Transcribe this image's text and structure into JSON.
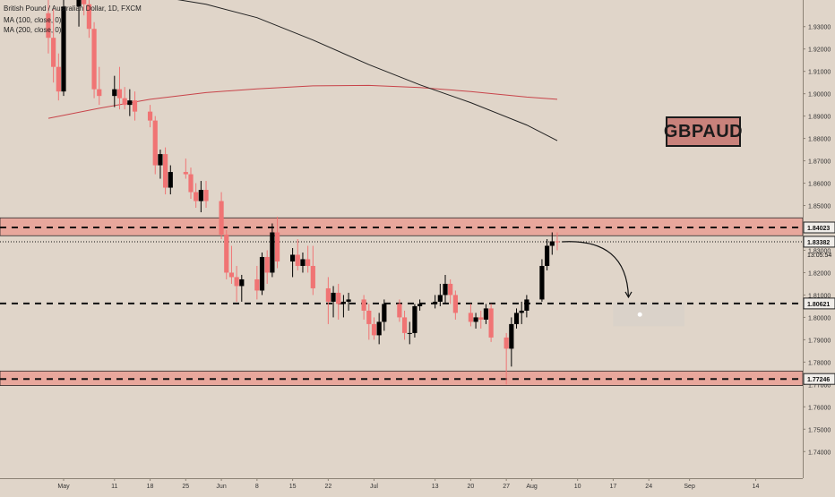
{
  "legend": {
    "title": "British Pound / Australian Dollar, 1D, FXCM",
    "ma100": "MA (100, close, 0)",
    "ma200": "MA (200, close, 0)"
  },
  "symbol_label": "GBPAUD",
  "colors": {
    "background": "#e0d5c9",
    "up_candle": "#000000",
    "down_candle": "#f07474",
    "zone_fill": "#e8a79c",
    "ma100": "#c8444a",
    "ma200": "#222222"
  },
  "chart_data": {
    "type": "candlestick",
    "ylim": [
      1.7345,
      1.9395
    ],
    "y_ticks": [
      "1.93000",
      "1.92000",
      "1.91000",
      "1.90000",
      "1.89000",
      "1.88000",
      "1.87000",
      "1.86000",
      "1.85000",
      "1.84000",
      "1.83000",
      "1.82000",
      "1.81000",
      "1.80000",
      "1.79000",
      "1.78000",
      "1.77000",
      "1.76000",
      "1.75000",
      "1.74000"
    ],
    "x_ticks": [
      "May",
      "11",
      "18",
      "25",
      "Jun",
      "8",
      "15",
      "22",
      "Jul",
      "13",
      "20",
      "27",
      "Aug",
      "10",
      "17",
      "24",
      "Sep",
      "14"
    ],
    "x_tick_dates": [
      "2020-05-01",
      "2020-05-11",
      "2020-05-18",
      "2020-05-25",
      "2020-06-01",
      "2020-06-08",
      "2020-06-15",
      "2020-06-22",
      "2020-07-01",
      "2020-07-13",
      "2020-07-20",
      "2020-07-27",
      "2020-08-01",
      "2020-08-10",
      "2020-08-17",
      "2020-08-24",
      "2020-09-01",
      "2020-09-14"
    ],
    "candles": [
      {
        "date": "2020-04-28",
        "o": 1.936,
        "h": 1.95,
        "l": 1.918,
        "c": 1.925
      },
      {
        "date": "2020-04-29",
        "o": 1.925,
        "h": 1.938,
        "l": 1.905,
        "c": 1.912
      },
      {
        "date": "2020-04-30",
        "o": 1.912,
        "h": 1.918,
        "l": 1.897,
        "c": 1.901
      },
      {
        "date": "2020-05-01",
        "o": 1.901,
        "h": 1.945,
        "l": 1.899,
        "c": 1.939
      },
      {
        "date": "2020-05-04",
        "o": 1.939,
        "h": 1.95,
        "l": 1.93,
        "c": 1.944
      },
      {
        "date": "2020-05-05",
        "o": 1.944,
        "h": 1.955,
        "l": 1.935,
        "c": 1.94
      },
      {
        "date": "2020-05-06",
        "o": 1.94,
        "h": 1.945,
        "l": 1.925,
        "c": 1.929
      },
      {
        "date": "2020-05-07",
        "o": 1.929,
        "h": 1.932,
        "l": 1.898,
        "c": 1.902
      },
      {
        "date": "2020-05-08",
        "o": 1.902,
        "h": 1.912,
        "l": 1.895,
        "c": 1.899
      },
      {
        "date": "2020-05-11",
        "o": 1.899,
        "h": 1.908,
        "l": 1.894,
        "c": 1.902
      },
      {
        "date": "2020-05-12",
        "o": 1.902,
        "h": 1.912,
        "l": 1.893,
        "c": 1.898
      },
      {
        "date": "2020-05-13",
        "o": 1.898,
        "h": 1.903,
        "l": 1.893,
        "c": 1.895
      },
      {
        "date": "2020-05-14",
        "o": 1.895,
        "h": 1.902,
        "l": 1.89,
        "c": 1.897
      },
      {
        "date": "2020-05-15",
        "o": 1.897,
        "h": 1.901,
        "l": 1.888,
        "c": 1.892
      },
      {
        "date": "2020-05-18",
        "o": 1.892,
        "h": 1.895,
        "l": 1.885,
        "c": 1.888
      },
      {
        "date": "2020-05-19",
        "o": 1.888,
        "h": 1.89,
        "l": 1.864,
        "c": 1.868
      },
      {
        "date": "2020-05-20",
        "o": 1.868,
        "h": 1.875,
        "l": 1.862,
        "c": 1.873
      },
      {
        "date": "2020-05-21",
        "o": 1.873,
        "h": 1.876,
        "l": 1.855,
        "c": 1.858
      },
      {
        "date": "2020-05-22",
        "o": 1.858,
        "h": 1.868,
        "l": 1.855,
        "c": 1.865
      },
      {
        "date": "2020-05-25",
        "o": 1.865,
        "h": 1.871,
        "l": 1.862,
        "c": 1.864
      },
      {
        "date": "2020-05-26",
        "o": 1.864,
        "h": 1.867,
        "l": 1.853,
        "c": 1.856
      },
      {
        "date": "2020-05-27",
        "o": 1.856,
        "h": 1.86,
        "l": 1.849,
        "c": 1.852
      },
      {
        "date": "2020-05-28",
        "o": 1.852,
        "h": 1.861,
        "l": 1.847,
        "c": 1.857
      },
      {
        "date": "2020-05-29",
        "o": 1.857,
        "h": 1.861,
        "l": 1.849,
        "c": 1.852
      },
      {
        "date": "2020-06-01",
        "o": 1.852,
        "h": 1.856,
        "l": 1.835,
        "c": 1.837
      },
      {
        "date": "2020-06-02",
        "o": 1.837,
        "h": 1.839,
        "l": 1.817,
        "c": 1.82
      },
      {
        "date": "2020-06-03",
        "o": 1.82,
        "h": 1.832,
        "l": 1.815,
        "c": 1.818
      },
      {
        "date": "2020-06-04",
        "o": 1.818,
        "h": 1.823,
        "l": 1.807,
        "c": 1.814
      },
      {
        "date": "2020-06-05",
        "o": 1.814,
        "h": 1.819,
        "l": 1.807,
        "c": 1.817
      },
      {
        "date": "2020-06-08",
        "o": 1.817,
        "h": 1.823,
        "l": 1.808,
        "c": 1.812
      },
      {
        "date": "2020-06-09",
        "o": 1.812,
        "h": 1.829,
        "l": 1.81,
        "c": 1.827
      },
      {
        "date": "2020-06-10",
        "o": 1.827,
        "h": 1.83,
        "l": 1.815,
        "c": 1.82
      },
      {
        "date": "2020-06-11",
        "o": 1.82,
        "h": 1.842,
        "l": 1.818,
        "c": 1.838
      },
      {
        "date": "2020-06-12",
        "o": 1.838,
        "h": 1.845,
        "l": 1.822,
        "c": 1.825
      },
      {
        "date": "2020-06-15",
        "o": 1.825,
        "h": 1.831,
        "l": 1.818,
        "c": 1.828
      },
      {
        "date": "2020-06-16",
        "o": 1.828,
        "h": 1.835,
        "l": 1.821,
        "c": 1.823
      },
      {
        "date": "2020-06-17",
        "o": 1.823,
        "h": 1.829,
        "l": 1.82,
        "c": 1.826
      },
      {
        "date": "2020-06-18",
        "o": 1.826,
        "h": 1.832,
        "l": 1.82,
        "c": 1.823
      },
      {
        "date": "2020-06-19",
        "o": 1.823,
        "h": 1.832,
        "l": 1.81,
        "c": 1.813
      },
      {
        "date": "2020-06-22",
        "o": 1.813,
        "h": 1.818,
        "l": 1.797,
        "c": 1.807
      },
      {
        "date": "2020-06-23",
        "o": 1.807,
        "h": 1.814,
        "l": 1.8,
        "c": 1.811
      },
      {
        "date": "2020-06-24",
        "o": 1.811,
        "h": 1.815,
        "l": 1.799,
        "c": 1.806
      },
      {
        "date": "2020-06-25",
        "o": 1.806,
        "h": 1.81,
        "l": 1.8,
        "c": 1.807
      },
      {
        "date": "2020-06-26",
        "o": 1.807,
        "h": 1.811,
        "l": 1.803,
        "c": 1.808
      },
      {
        "date": "2020-06-29",
        "o": 1.808,
        "h": 1.81,
        "l": 1.799,
        "c": 1.803
      },
      {
        "date": "2020-06-30",
        "o": 1.803,
        "h": 1.806,
        "l": 1.79,
        "c": 1.797
      },
      {
        "date": "2020-07-01",
        "o": 1.797,
        "h": 1.8,
        "l": 1.79,
        "c": 1.792
      },
      {
        "date": "2020-07-02",
        "o": 1.792,
        "h": 1.802,
        "l": 1.788,
        "c": 1.798
      },
      {
        "date": "2020-07-03",
        "o": 1.798,
        "h": 1.808,
        "l": 1.794,
        "c": 1.806
      },
      {
        "date": "2020-07-06",
        "o": 1.806,
        "h": 1.808,
        "l": 1.798,
        "c": 1.8
      },
      {
        "date": "2020-07-07",
        "o": 1.8,
        "h": 1.803,
        "l": 1.79,
        "c": 1.793
      },
      {
        "date": "2020-07-08",
        "o": 1.793,
        "h": 1.798,
        "l": 1.788,
        "c": 1.793
      },
      {
        "date": "2020-07-09",
        "o": 1.793,
        "h": 1.806,
        "l": 1.791,
        "c": 1.805
      },
      {
        "date": "2020-07-10",
        "o": 1.805,
        "h": 1.808,
        "l": 1.803,
        "c": 1.806
      },
      {
        "date": "2020-07-13",
        "o": 1.806,
        "h": 1.81,
        "l": 1.804,
        "c": 1.807
      },
      {
        "date": "2020-07-14",
        "o": 1.807,
        "h": 1.815,
        "l": 1.805,
        "c": 1.81
      },
      {
        "date": "2020-07-15",
        "o": 1.81,
        "h": 1.819,
        "l": 1.806,
        "c": 1.815
      },
      {
        "date": "2020-07-16",
        "o": 1.815,
        "h": 1.817,
        "l": 1.806,
        "c": 1.81
      },
      {
        "date": "2020-07-17",
        "o": 1.81,
        "h": 1.812,
        "l": 1.799,
        "c": 1.802
      },
      {
        "date": "2020-07-20",
        "o": 1.802,
        "h": 1.806,
        "l": 1.796,
        "c": 1.798
      },
      {
        "date": "2020-07-21",
        "o": 1.798,
        "h": 1.802,
        "l": 1.795,
        "c": 1.8
      },
      {
        "date": "2020-07-22",
        "o": 1.8,
        "h": 1.803,
        "l": 1.795,
        "c": 1.799
      },
      {
        "date": "2020-07-23",
        "o": 1.799,
        "h": 1.806,
        "l": 1.797,
        "c": 1.804
      },
      {
        "date": "2020-07-24",
        "o": 1.804,
        "h": 1.806,
        "l": 1.789,
        "c": 1.791
      },
      {
        "date": "2020-07-27",
        "o": 1.791,
        "h": 1.793,
        "l": 1.77,
        "c": 1.786
      },
      {
        "date": "2020-07-28",
        "o": 1.786,
        "h": 1.8,
        "l": 1.778,
        "c": 1.797
      },
      {
        "date": "2020-07-29",
        "o": 1.797,
        "h": 1.804,
        "l": 1.795,
        "c": 1.802
      },
      {
        "date": "2020-07-30",
        "o": 1.802,
        "h": 1.807,
        "l": 1.797,
        "c": 1.803
      },
      {
        "date": "2020-07-31",
        "o": 1.803,
        "h": 1.81,
        "l": 1.8,
        "c": 1.808
      },
      {
        "date": "2020-08-03",
        "o": 1.808,
        "h": 1.826,
        "l": 1.807,
        "c": 1.823
      },
      {
        "date": "2020-08-04",
        "o": 1.823,
        "h": 1.835,
        "l": 1.821,
        "c": 1.832
      },
      {
        "date": "2020-08-05",
        "o": 1.832,
        "h": 1.838,
        "l": 1.828,
        "c": 1.834
      },
      {
        "date": "2020-08-06",
        "o": 1.834,
        "h": 1.838,
        "l": 1.83,
        "c": 1.8338
      }
    ],
    "series": [
      {
        "name": "MA (100, close, 0)",
        "points": [
          {
            "date": "2020-04-28",
            "value": 1.889
          },
          {
            "date": "2020-05-08",
            "value": 1.8935
          },
          {
            "date": "2020-05-18",
            "value": 1.8975
          },
          {
            "date": "2020-05-29",
            "value": 1.9005
          },
          {
            "date": "2020-06-08",
            "value": 1.9022
          },
          {
            "date": "2020-06-19",
            "value": 1.9035
          },
          {
            "date": "2020-06-30",
            "value": 1.9037
          },
          {
            "date": "2020-07-10",
            "value": 1.9028
          },
          {
            "date": "2020-07-20",
            "value": 1.901
          },
          {
            "date": "2020-07-31",
            "value": 1.8985
          },
          {
            "date": "2020-08-06",
            "value": 1.8975
          }
        ]
      },
      {
        "name": "MA (200, close, 0)",
        "points": [
          {
            "date": "2020-05-21",
            "value": 1.943
          },
          {
            "date": "2020-05-29",
            "value": 1.94
          },
          {
            "date": "2020-06-08",
            "value": 1.934
          },
          {
            "date": "2020-06-19",
            "value": 1.924
          },
          {
            "date": "2020-06-30",
            "value": 1.913
          },
          {
            "date": "2020-07-10",
            "value": 1.904
          },
          {
            "date": "2020-07-20",
            "value": 1.896
          },
          {
            "date": "2020-07-31",
            "value": 1.886
          },
          {
            "date": "2020-08-06",
            "value": 1.879
          }
        ]
      }
    ],
    "zones": [
      {
        "from": 1.8365,
        "to": 1.8445
      },
      {
        "from": 1.7695,
        "to": 1.776
      }
    ],
    "levels": [
      {
        "value": 1.8402,
        "label": "1.84023",
        "style": "dashed"
      },
      {
        "value": 1.80621,
        "label": "1.80621",
        "style": "dashed"
      },
      {
        "value": 1.77246,
        "label": "1.77246",
        "style": "dashed"
      }
    ],
    "current_price": {
      "value": 1.83382,
      "label": "1.83382",
      "countdown": "13:05:54"
    },
    "projection": {
      "from": {
        "date": "2020-08-07",
        "value": 1.8338
      },
      "to": {
        "date": "2020-08-20",
        "value": 1.809
      }
    },
    "target_box": {
      "date_from": "2020-08-17",
      "date_to": "2020-08-31",
      "y_from": 1.8065,
      "y_to": 1.796
    }
  }
}
